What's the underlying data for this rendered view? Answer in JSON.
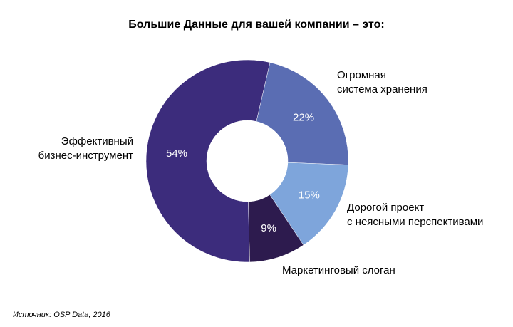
{
  "chart_data": {
    "type": "pie",
    "title": "Большие Данные для вашей компании – это:",
    "categories": [
      "Огромная\nсистема хранения",
      "Дорогой проект\nс неясными перспективами",
      "Маркетинговый слоган",
      "Эффективный\nбизнес-инструмент"
    ],
    "values": [
      22,
      15,
      9,
      54
    ],
    "value_labels": [
      "22%",
      "15%",
      "9%",
      "54%"
    ],
    "colors": [
      "#5a6db3",
      "#7ea5db",
      "#2d1b4e",
      "#3c2c7c"
    ],
    "source": "Источник: OSP Data, 2016"
  }
}
